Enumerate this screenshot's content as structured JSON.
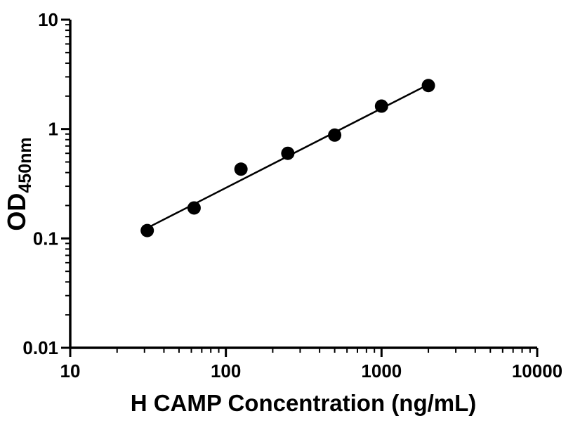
{
  "figure": {
    "background": "#ffffff",
    "ylabel_main": "OD",
    "ylabel_sub": "450nm"
  },
  "chart_data": {
    "type": "scatter",
    "title": "",
    "xlabel": "H CAMP Concentration (ng/mL)",
    "ylabel": "OD450nm",
    "x_scale": "log",
    "y_scale": "log",
    "xlim": [
      10,
      10000
    ],
    "ylim": [
      0.01,
      10
    ],
    "x_ticks": [
      10,
      100,
      1000,
      10000
    ],
    "x_tick_labels": [
      "10",
      "100",
      "1000",
      "10000"
    ],
    "y_ticks": [
      0.01,
      0.1,
      1,
      10
    ],
    "y_tick_labels": [
      "0.01",
      "0.1",
      "1",
      "10"
    ],
    "grid": false,
    "legend": false,
    "axis_color": "#000000",
    "marker_size_px": 9.5,
    "series": [
      {
        "name": "fit-line",
        "type": "line",
        "color": "#000000",
        "x": [
          30,
          2050
        ],
        "y": [
          0.121,
          2.6
        ]
      },
      {
        "name": "standard-points",
        "type": "scatter",
        "marker": "circle",
        "color": "#000000",
        "x": [
          31.25,
          62.5,
          125,
          250,
          500,
          1000,
          2000
        ],
        "y": [
          0.118,
          0.19,
          0.43,
          0.6,
          0.88,
          1.62,
          2.5
        ]
      }
    ]
  }
}
